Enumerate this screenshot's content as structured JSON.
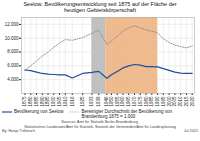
{
  "chart_data": {
    "type": "line",
    "title": "Seelow: Bevölkerungsentwicklung seit 1875 auf der Fläche der\nheutigen Gebietskörperschaft",
    "notes": [
      "By: Hanjo Trillitzsch",
      "Sources: Amt für Statistik Berlin-Brandenburg,\nStatistisches Landesamt/Amt für Statistik, Statistik der Gemeinden/Amt für Landesplanung",
      "Jul 2021"
    ],
    "x": [
      1875,
      1880,
      1885,
      1890,
      1895,
      1900,
      1905,
      1910,
      1916,
      1925,
      1933,
      1939,
      1946,
      1950,
      1955,
      1960,
      1965,
      1970,
      1975,
      1980,
      1985,
      1990,
      1995,
      2000,
      2005,
      2010,
      2015,
      2020
    ],
    "series": [
      {
        "name": "Bevölkerung von Seelow",
        "color": "#1a4fa0",
        "line_style": "solid",
        "values": [
          5400,
          5300,
          5100,
          4900,
          4800,
          4750,
          4700,
          4700,
          4250,
          4900,
          5050,
          5200,
          4200,
          4700,
          5200,
          5700,
          6000,
          6200,
          6100,
          5900,
          5900,
          5850,
          5600,
          5350,
          5100,
          4950,
          4900,
          4900
        ]
      },
      {
        "name": "Bereinigter Durchschnitt der Bevölkerung von\nBrandenburg 1875 = 1.000",
        "color": "#909090",
        "line_style": "dotted",
        "values": [
          5400,
          6000,
          6700,
          7400,
          8000,
          8700,
          9300,
          9800,
          9700,
          10100,
          10700,
          11200,
          9100,
          9600,
          10300,
          11000,
          11500,
          11800,
          11500,
          11200,
          11000,
          10800,
          9900,
          9400,
          9000,
          8800,
          8600,
          8900
        ]
      }
    ],
    "spans": [
      {
        "start": 1933,
        "end": 1945,
        "color": "#c0c0c0"
      },
      {
        "start": 1945,
        "end": 1990,
        "color": "#f2b98a"
      }
    ],
    "xlim": [
      1872,
      2022
    ],
    "xticks": [
      1875,
      1880,
      1885,
      1890,
      1895,
      1900,
      1905,
      1910,
      1916,
      1925,
      1933,
      1939,
      1946,
      1950,
      1955,
      1960,
      1965,
      1970,
      1975,
      1980,
      1985,
      1990,
      1995,
      2000,
      2005,
      2010,
      2015,
      2020
    ],
    "ylim": [
      2000,
      13000
    ],
    "yticks": [
      {
        "value": 4000,
        "label": "4.000"
      },
      {
        "value": 6000,
        "label": "6.000"
      },
      {
        "value": 8000,
        "label": "8.000"
      },
      {
        "value": 10000,
        "label": "10.000"
      },
      {
        "value": 12000,
        "label": "12.000"
      }
    ],
    "grid": true,
    "legend": "lower left"
  }
}
